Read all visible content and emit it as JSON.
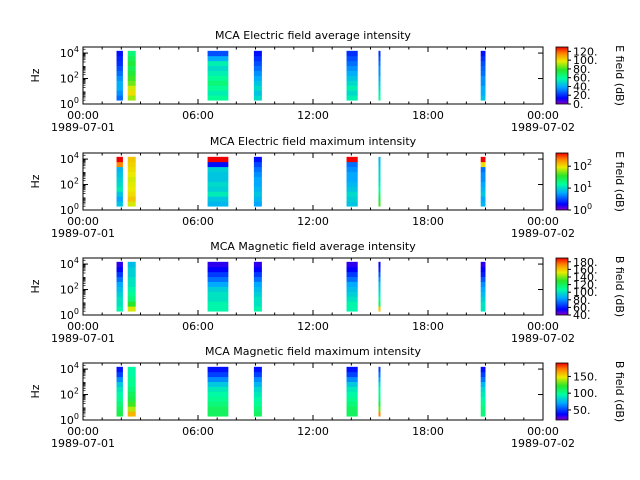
{
  "chart_data": [
    {
      "type": "heatmap",
      "title": "MCA  Electric field average intensity",
      "ylabel": "Hz",
      "y_scale": "log",
      "ylim": [
        1,
        30000
      ],
      "y_ticks": [
        {
          "base": "10",
          "exp": "0"
        },
        {
          "base": "10",
          "exp": "2"
        },
        {
          "base": "10",
          "exp": "4"
        }
      ],
      "x_range": [
        "1989-07-01T00:00",
        "1989-07-02T00:00"
      ],
      "x_ticks": [
        {
          "time": "00:00",
          "date": "1989-07-01"
        },
        {
          "time": "06:00",
          "date": ""
        },
        {
          "time": "12:00",
          "date": ""
        },
        {
          "time": "18:00",
          "date": ""
        },
        {
          "time": "00:00",
          "date": "1989-07-02"
        }
      ],
      "colorbar": {
        "label": "E field (dB)",
        "scale": "linear",
        "range": [
          0,
          130
        ],
        "ticks": [
          {
            "v": 0,
            "t": "0."
          },
          {
            "v": 20,
            "t": "20."
          },
          {
            "v": 40,
            "t": "40."
          },
          {
            "v": 60,
            "t": "60."
          },
          {
            "v": 80,
            "t": "80."
          },
          {
            "v": 100,
            "t": "100."
          },
          {
            "v": 120,
            "t": "120."
          }
        ]
      },
      "segments": [
        {
          "start": "01:45",
          "end": "02:05",
          "values_low_to_high": [
            30,
            35,
            40,
            40,
            35,
            30,
            25,
            20,
            18,
            15
          ]
        },
        {
          "start": "02:20",
          "end": "02:45",
          "values_low_to_high": [
            90,
            100,
            95,
            85,
            80,
            75,
            70,
            75,
            70,
            65
          ]
        },
        {
          "start": "06:30",
          "end": "07:35",
          "values_low_to_high": [
            60,
            55,
            60,
            65,
            60,
            55,
            50,
            55,
            40,
            25
          ]
        },
        {
          "start": "08:55",
          "end": "09:20",
          "values_low_to_high": [
            50,
            45,
            50,
            45,
            40,
            35,
            30,
            25,
            20,
            15
          ]
        },
        {
          "start": "13:45",
          "end": "14:20",
          "values_low_to_high": [
            55,
            50,
            55,
            50,
            45,
            40,
            35,
            30,
            25,
            20
          ]
        },
        {
          "start": "15:25",
          "end": "15:30",
          "values_low_to_high": [
            60,
            55,
            50,
            45,
            40,
            35,
            35,
            30,
            25,
            20
          ]
        },
        {
          "start": "20:45",
          "end": "21:00",
          "values_low_to_high": [
            45,
            40,
            40,
            35,
            35,
            30,
            28,
            25,
            20,
            15
          ]
        }
      ]
    },
    {
      "type": "heatmap",
      "title": "MCA  Electric field maximum intensity",
      "ylabel": "Hz",
      "y_scale": "log",
      "ylim": [
        1,
        30000
      ],
      "y_ticks": [
        {
          "base": "10",
          "exp": "0"
        },
        {
          "base": "10",
          "exp": "2"
        },
        {
          "base": "10",
          "exp": "4"
        }
      ],
      "x_range": [
        "1989-07-01T00:00",
        "1989-07-02T00:00"
      ],
      "x_ticks": [
        {
          "time": "00:00",
          "date": "1989-07-01"
        },
        {
          "time": "06:00",
          "date": ""
        },
        {
          "time": "12:00",
          "date": ""
        },
        {
          "time": "18:00",
          "date": ""
        },
        {
          "time": "00:00",
          "date": "1989-07-02"
        }
      ],
      "colorbar": {
        "label": "E field (dB)",
        "scale": "log",
        "range": [
          1,
          400
        ],
        "ticks": [
          {
            "v": 1,
            "b": "10",
            "e": "0"
          },
          {
            "v": 10,
            "b": "10",
            "e": "1"
          },
          {
            "v": 100,
            "b": "10",
            "e": "2"
          }
        ]
      },
      "segments": [
        {
          "start": "01:45",
          "end": "02:05",
          "values_low_to_high": [
            8,
            6,
            8,
            12,
            10,
            9,
            8,
            7,
            200,
            400
          ]
        },
        {
          "start": "02:20",
          "end": "02:45",
          "values_low_to_high": [
            80,
            120,
            100,
            90,
            85,
            80,
            90,
            100,
            110,
            120
          ]
        },
        {
          "start": "06:30",
          "end": "07:35",
          "values_low_to_high": [
            7,
            8,
            12,
            9,
            10,
            8,
            8,
            9,
            2,
            400
          ]
        },
        {
          "start": "08:55",
          "end": "09:20",
          "values_low_to_high": [
            6,
            7,
            8,
            7,
            6,
            6,
            5,
            4,
            3,
            2
          ]
        },
        {
          "start": "13:45",
          "end": "14:20",
          "values_low_to_high": [
            8,
            9,
            10,
            8,
            7,
            6,
            6,
            5,
            4,
            400
          ]
        },
        {
          "start": "15:25",
          "end": "15:30",
          "values_low_to_high": [
            40,
            30,
            20,
            15,
            12,
            10,
            10,
            9,
            8,
            7
          ]
        },
        {
          "start": "20:45",
          "end": "21:00",
          "values_low_to_high": [
            7,
            6,
            8,
            7,
            6,
            5,
            5,
            4,
            100,
            400
          ]
        }
      ]
    },
    {
      "type": "heatmap",
      "title": "MCA  Magnetic field average intensity",
      "ylabel": "Hz",
      "y_scale": "log",
      "ylim": [
        1,
        30000
      ],
      "y_ticks": [
        {
          "base": "10",
          "exp": "0"
        },
        {
          "base": "10",
          "exp": "2"
        },
        {
          "base": "10",
          "exp": "4"
        }
      ],
      "x_range": [
        "1989-07-01T00:00",
        "1989-07-02T00:00"
      ],
      "x_ticks": [
        {
          "time": "00:00",
          "date": "1989-07-01"
        },
        {
          "time": "06:00",
          "date": ""
        },
        {
          "time": "12:00",
          "date": ""
        },
        {
          "time": "18:00",
          "date": ""
        },
        {
          "time": "00:00",
          "date": "1989-07-02"
        }
      ],
      "colorbar": {
        "label": "B field (dB)",
        "scale": "linear",
        "range": [
          40,
          190
        ],
        "ticks": [
          {
            "v": 40,
            "t": "40."
          },
          {
            "v": 60,
            "t": "60."
          },
          {
            "v": 80,
            "t": "80."
          },
          {
            "v": 100,
            "t": "100."
          },
          {
            "v": 120,
            "t": "120."
          },
          {
            "v": 140,
            "t": "140."
          },
          {
            "v": 160,
            "t": "160."
          },
          {
            "v": 180,
            "t": "180."
          }
        ]
      },
      "segments": [
        {
          "start": "01:45",
          "end": "02:05",
          "values_low_to_high": [
            105,
            100,
            100,
            95,
            90,
            85,
            75,
            65,
            55,
            50
          ]
        },
        {
          "start": "02:20",
          "end": "02:45",
          "values_low_to_high": [
            150,
            130,
            115,
            110,
            105,
            100,
            100,
            95,
            95,
            90
          ]
        },
        {
          "start": "06:30",
          "end": "07:35",
          "values_low_to_high": [
            105,
            105,
            100,
            100,
            95,
            85,
            75,
            65,
            55,
            50
          ]
        },
        {
          "start": "08:55",
          "end": "09:20",
          "values_low_to_high": [
            105,
            100,
            100,
            95,
            90,
            85,
            75,
            65,
            55,
            50
          ]
        },
        {
          "start": "13:45",
          "end": "14:20",
          "values_low_to_high": [
            105,
            105,
            100,
            95,
            90,
            85,
            75,
            65,
            55,
            50
          ]
        },
        {
          "start": "15:25",
          "end": "15:30",
          "values_low_to_high": [
            160,
            120,
            110,
            100,
            95,
            90,
            80,
            70,
            60,
            55
          ]
        },
        {
          "start": "20:45",
          "end": "21:00",
          "values_low_to_high": [
            100,
            100,
            95,
            90,
            85,
            80,
            70,
            60,
            55,
            50
          ]
        }
      ]
    },
    {
      "type": "heatmap",
      "title": "MCA  Magnetic field maximum intensity",
      "ylabel": "Hz",
      "y_scale": "log",
      "ylim": [
        1,
        30000
      ],
      "y_ticks": [
        {
          "base": "10",
          "exp": "0"
        },
        {
          "base": "10",
          "exp": "2"
        },
        {
          "base": "10",
          "exp": "4"
        }
      ],
      "x_range": [
        "1989-07-01T00:00",
        "1989-07-02T00:00"
      ],
      "x_ticks": [
        {
          "time": "00:00",
          "date": "1989-07-01"
        },
        {
          "time": "06:00",
          "date": ""
        },
        {
          "time": "12:00",
          "date": ""
        },
        {
          "time": "18:00",
          "date": ""
        },
        {
          "time": "00:00",
          "date": "1989-07-02"
        }
      ],
      "colorbar": {
        "label": "B field (dB)",
        "scale": "linear",
        "range": [
          20,
          190
        ],
        "ticks": [
          {
            "v": 50,
            "t": "50."
          },
          {
            "v": 100,
            "t": "100."
          },
          {
            "v": 150,
            "t": "150."
          }
        ]
      },
      "segments": [
        {
          "start": "01:45",
          "end": "02:05",
          "values_low_to_high": [
            115,
            110,
            105,
            100,
            95,
            90,
            80,
            65,
            50,
            40
          ]
        },
        {
          "start": "02:20",
          "end": "02:45",
          "values_low_to_high": [
            160,
            140,
            125,
            115,
            110,
            105,
            100,
            100,
            95,
            95
          ]
        },
        {
          "start": "06:30",
          "end": "07:35",
          "values_low_to_high": [
            110,
            110,
            105,
            100,
            95,
            90,
            80,
            65,
            50,
            40
          ]
        },
        {
          "start": "08:55",
          "end": "09:20",
          "values_low_to_high": [
            110,
            105,
            100,
            95,
            90,
            85,
            75,
            65,
            50,
            40
          ]
        },
        {
          "start": "13:45",
          "end": "14:20",
          "values_low_to_high": [
            110,
            110,
            105,
            100,
            95,
            90,
            80,
            65,
            50,
            40
          ]
        },
        {
          "start": "15:25",
          "end": "15:30",
          "values_low_to_high": [
            170,
            130,
            115,
            105,
            100,
            95,
            85,
            70,
            60,
            50
          ]
        },
        {
          "start": "20:45",
          "end": "21:00",
          "values_low_to_high": [
            105,
            105,
            100,
            95,
            90,
            85,
            75,
            60,
            50,
            40
          ]
        }
      ]
    }
  ]
}
